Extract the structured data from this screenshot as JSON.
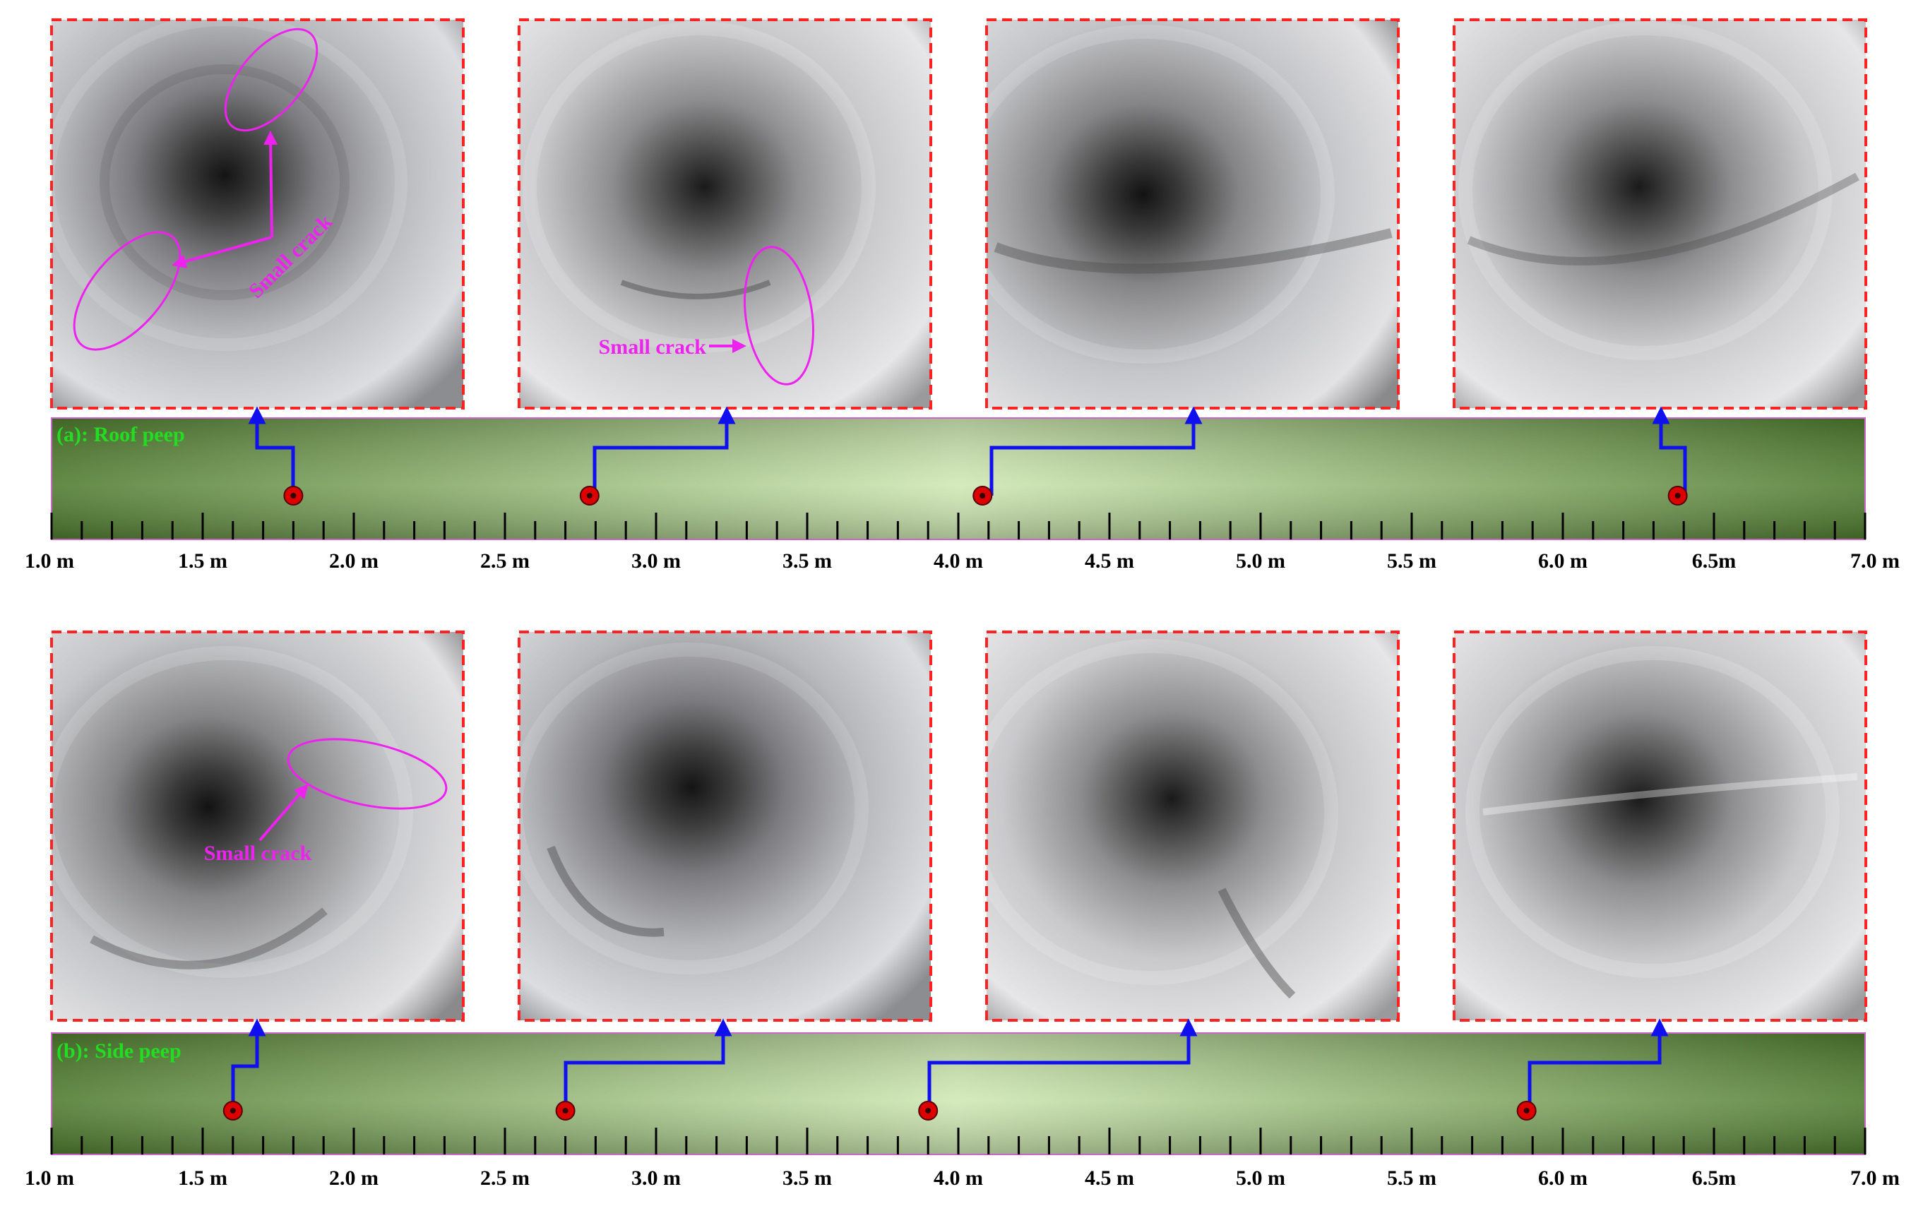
{
  "colors": {
    "frame_border": "#ff2222",
    "annotation": "#ee22ee",
    "connector": "#1010ee",
    "marker": "#dd0000",
    "panel_label": "#22dd22",
    "bar_dark": "#4e7a2e",
    "bar_light": "#cfe8b4"
  },
  "axis": {
    "tick_labels": [
      "1.0 m",
      "1.5 m",
      "2.0 m",
      "2.5 m",
      "3.0 m",
      "3.5 m",
      "4.0 m",
      "4.5 m",
      "5.0 m",
      "5.5 m",
      "6.0 m",
      "6.5m",
      "7.0 m"
    ],
    "min": 1.0,
    "max": 7.0,
    "minor_step": 0.1
  },
  "panels": [
    {
      "label": "(a): Roof peep",
      "positions_m": [
        1.8,
        2.78,
        4.08,
        6.38
      ],
      "annotations": [
        "Small crack",
        "Small crack"
      ]
    },
    {
      "label": "(b): Side peep",
      "positions_m": [
        1.6,
        2.7,
        3.9,
        5.88
      ],
      "annotations": [
        "Small crack"
      ]
    }
  ]
}
